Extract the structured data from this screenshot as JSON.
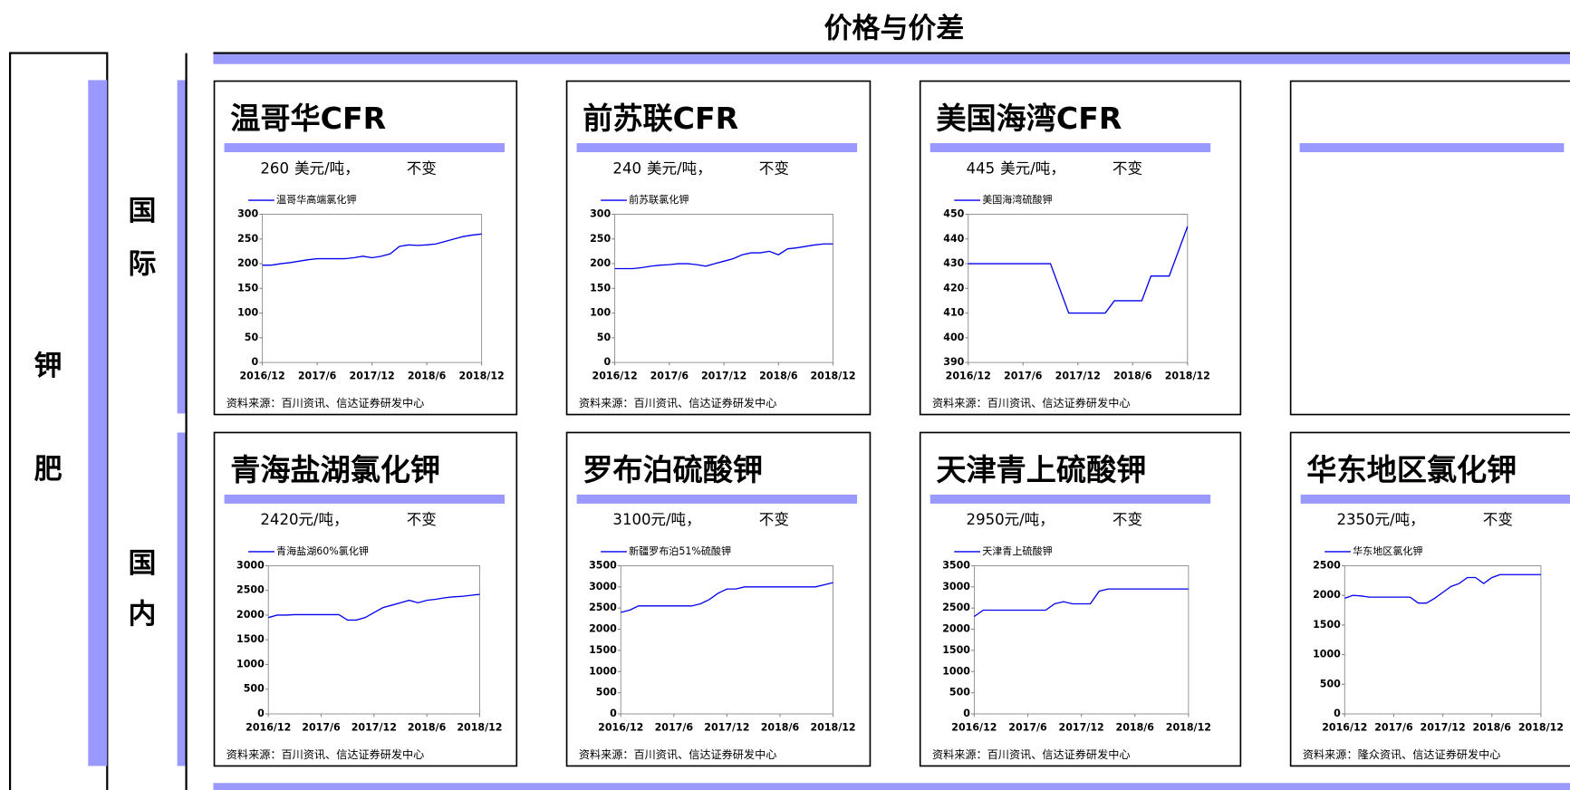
{
  "header": {
    "title": "价格与价差",
    "category": [
      "钾",
      "肥"
    ],
    "international": [
      "国",
      "际"
    ],
    "domestic": [
      "国",
      "内"
    ]
  },
  "chart_data": [
    {
      "type": "line",
      "title": "温哥华CFR",
      "price": 260,
      "unit": "美元/吨，",
      "change": "不变",
      "source": "资料来源：百川资讯、信达证券研发中心",
      "x": [
        "2016/12",
        "2017/1",
        "2017/2",
        "2017/3",
        "2017/4",
        "2017/5",
        "2017/6",
        "2017/7",
        "2017/8",
        "2017/9",
        "2017/10",
        "2017/11",
        "2017/12",
        "2018/1",
        "2018/2",
        "2018/3",
        "2018/4",
        "2018/5",
        "2018/6",
        "2018/7",
        "2018/8",
        "2018/9",
        "2018/10",
        "2018/11",
        "2018/12"
      ],
      "series": [
        {
          "name": "温哥华高端氯化钾",
          "color": "#0000ee",
          "values": [
            197,
            197,
            200,
            202,
            205,
            208,
            210,
            210,
            210,
            210,
            212,
            215,
            212,
            215,
            220,
            235,
            238,
            237,
            238,
            240,
            245,
            250,
            255,
            258,
            260
          ]
        }
      ],
      "xlim": [
        "2016/12",
        "2018/12"
      ],
      "xticks": [
        "2016/12",
        "2017/6",
        "2017/12",
        "2018/6",
        "2018/12"
      ],
      "ylim": [
        0,
        300
      ],
      "yticks": [
        0,
        50,
        100,
        150,
        200,
        250,
        300
      ]
    },
    {
      "type": "line",
      "title": "前苏联CFR",
      "price": 240,
      "unit": "美元/吨，",
      "change": "不变",
      "source": "资料来源：百川资讯、信达证券研发中心",
      "x": [
        "2016/12",
        "2017/1",
        "2017/2",
        "2017/3",
        "2017/4",
        "2017/5",
        "2017/6",
        "2017/7",
        "2017/8",
        "2017/9",
        "2017/10",
        "2017/11",
        "2017/12",
        "2018/1",
        "2018/2",
        "2018/3",
        "2018/4",
        "2018/5",
        "2018/6",
        "2018/7",
        "2018/8",
        "2018/9",
        "2018/10",
        "2018/11",
        "2018/12"
      ],
      "series": [
        {
          "name": "前苏联氯化钾",
          "color": "#0000ee",
          "values": [
            190,
            190,
            190,
            192,
            195,
            197,
            198,
            200,
            200,
            198,
            195,
            200,
            205,
            210,
            218,
            222,
            222,
            225,
            218,
            230,
            232,
            235,
            238,
            240,
            240
          ]
        }
      ],
      "xlim": [
        "2016/12",
        "2018/12"
      ],
      "xticks": [
        "2016/12",
        "2017/6",
        "2017/12",
        "2018/6",
        "2018/12"
      ],
      "ylim": [
        0,
        300
      ],
      "yticks": [
        0,
        50,
        100,
        150,
        200,
        250,
        300
      ]
    },
    {
      "type": "line",
      "title": "美国海湾CFR",
      "price": 445,
      "unit": "美元/吨，",
      "change": "不变",
      "source": "资料来源：百川资讯、信达证券研发中心",
      "x": [
        "2016/12",
        "2017/1",
        "2017/2",
        "2017/3",
        "2017/4",
        "2017/5",
        "2017/6",
        "2017/7",
        "2017/8",
        "2017/9",
        "2017/10",
        "2017/11",
        "2017/12",
        "2018/1",
        "2018/2",
        "2018/3",
        "2018/4",
        "2018/5",
        "2018/6",
        "2018/7",
        "2018/8",
        "2018/9",
        "2018/10",
        "2018/11",
        "2018/12"
      ],
      "series": [
        {
          "name": "美国海湾硫酸钾",
          "color": "#0000ee",
          "values": [
            430,
            430,
            430,
            430,
            430,
            430,
            430,
            430,
            430,
            430,
            420,
            410,
            410,
            410,
            410,
            410,
            415,
            415,
            415,
            415,
            425,
            425,
            425,
            435,
            445
          ]
        }
      ],
      "xlim": [
        "2016/12",
        "2018/12"
      ],
      "xticks": [
        "2016/12",
        "2017/6",
        "2017/12",
        "2018/6",
        "2018/12"
      ],
      "ylim": [
        390,
        450
      ],
      "yticks": [
        390,
        400,
        410,
        420,
        430,
        440,
        450
      ]
    },
    {
      "type": "line",
      "title": "青海盐湖氯化钾",
      "price": 2420,
      "unit": "元/吨，",
      "change": "不变",
      "source": "资料来源：百川资讯、信达证券研发中心",
      "x": [
        "2016/12",
        "2017/1",
        "2017/2",
        "2017/3",
        "2017/4",
        "2017/5",
        "2017/6",
        "2017/7",
        "2017/8",
        "2017/9",
        "2017/10",
        "2017/11",
        "2017/12",
        "2018/1",
        "2018/2",
        "2018/3",
        "2018/4",
        "2018/5",
        "2018/6",
        "2018/7",
        "2018/8",
        "2018/9",
        "2018/10",
        "2018/11",
        "2018/12"
      ],
      "series": [
        {
          "name": "青海盐湖60%氯化钾",
          "color": "#0000ee",
          "values": [
            1950,
            2000,
            2000,
            2010,
            2010,
            2010,
            2010,
            2010,
            2010,
            1900,
            1900,
            1950,
            2050,
            2150,
            2200,
            2250,
            2300,
            2250,
            2300,
            2320,
            2350,
            2370,
            2380,
            2400,
            2420
          ]
        }
      ],
      "xlim": [
        "2016/12",
        "2018/12"
      ],
      "xticks": [
        "2016/12",
        "2017/6",
        "2017/12",
        "2018/6",
        "2018/12"
      ],
      "ylim": [
        0,
        3000
      ],
      "yticks": [
        0,
        500,
        1000,
        1500,
        2000,
        2500,
        3000
      ]
    },
    {
      "type": "line",
      "title": "罗布泊硫酸钾",
      "price": 3100,
      "unit": "元/吨，",
      "change": "不变",
      "source": "资料来源：百川资讯、信达证券研发中心",
      "x": [
        "2016/12",
        "2017/1",
        "2017/2",
        "2017/3",
        "2017/4",
        "2017/5",
        "2017/6",
        "2017/7",
        "2017/8",
        "2017/9",
        "2017/10",
        "2017/11",
        "2017/12",
        "2018/1",
        "2018/2",
        "2018/3",
        "2018/4",
        "2018/5",
        "2018/6",
        "2018/7",
        "2018/8",
        "2018/9",
        "2018/10",
        "2018/11",
        "2018/12"
      ],
      "series": [
        {
          "name": "新疆罗布泊51%硫酸钾",
          "color": "#0000ee",
          "values": [
            2400,
            2450,
            2550,
            2550,
            2550,
            2550,
            2550,
            2550,
            2550,
            2600,
            2700,
            2850,
            2950,
            2950,
            3000,
            3000,
            3000,
            3000,
            3000,
            3000,
            3000,
            3000,
            3000,
            3050,
            3100
          ]
        }
      ],
      "xlim": [
        "2016/12",
        "2018/12"
      ],
      "xticks": [
        "2016/12",
        "2017/6",
        "2017/12",
        "2018/6",
        "2018/12"
      ],
      "ylim": [
        0,
        3500
      ],
      "yticks": [
        0,
        500,
        1000,
        1500,
        2000,
        2500,
        3000,
        3500
      ]
    },
    {
      "type": "line",
      "title": "天津青上硫酸钾",
      "price": 2950,
      "unit": "元/吨，",
      "change": "不变",
      "source": "资料来源：百川资讯、信达证券研发中心",
      "x": [
        "2016/12",
        "2017/1",
        "2017/2",
        "2017/3",
        "2017/4",
        "2017/5",
        "2017/6",
        "2017/7",
        "2017/8",
        "2017/9",
        "2017/10",
        "2017/11",
        "2017/12",
        "2018/1",
        "2018/2",
        "2018/3",
        "2018/4",
        "2018/5",
        "2018/6",
        "2018/7",
        "2018/8",
        "2018/9",
        "2018/10",
        "2018/11",
        "2018/12"
      ],
      "series": [
        {
          "name": "天津青上硫酸钾",
          "color": "#0000ee",
          "values": [
            2300,
            2450,
            2450,
            2450,
            2450,
            2450,
            2450,
            2450,
            2450,
            2600,
            2650,
            2600,
            2600,
            2600,
            2900,
            2950,
            2950,
            2950,
            2950,
            2950,
            2950,
            2950,
            2950,
            2950,
            2950
          ]
        }
      ],
      "xlim": [
        "2016/12",
        "2018/12"
      ],
      "xticks": [
        "2016/12",
        "2017/6",
        "2017/12",
        "2018/6",
        "2018/12"
      ],
      "ylim": [
        0,
        3500
      ],
      "yticks": [
        0,
        500,
        1000,
        1500,
        2000,
        2500,
        3000,
        3500
      ]
    },
    {
      "type": "line",
      "title": "华东地区氯化钾",
      "price": 2350,
      "unit": "元/吨，",
      "change": "不变",
      "source": "资料来源：隆众资讯、信达证券研发中心",
      "x": [
        "2016/12",
        "2017/1",
        "2017/2",
        "2017/3",
        "2017/4",
        "2017/5",
        "2017/6",
        "2017/7",
        "2017/8",
        "2017/9",
        "2017/10",
        "2017/11",
        "2017/12",
        "2018/1",
        "2018/2",
        "2018/3",
        "2018/4",
        "2018/5",
        "2018/6",
        "2018/7",
        "2018/8",
        "2018/9",
        "2018/10",
        "2018/11",
        "2018/12"
      ],
      "series": [
        {
          "name": "华东地区氯化钾",
          "color": "#0000ee",
          "values": [
            1950,
            2000,
            1990,
            1970,
            1970,
            1970,
            1970,
            1970,
            1970,
            1870,
            1870,
            1950,
            2050,
            2150,
            2200,
            2300,
            2300,
            2200,
            2300,
            2350,
            2350,
            2350,
            2350,
            2350,
            2350
          ]
        }
      ],
      "xlim": [
        "2016/12",
        "2018/12"
      ],
      "xticks": [
        "2016/12",
        "2017/6",
        "2017/12",
        "2018/6",
        "2018/12"
      ],
      "ylim": [
        0,
        2500
      ],
      "yticks": [
        0,
        500,
        1000,
        1500,
        2000,
        2500
      ]
    }
  ]
}
